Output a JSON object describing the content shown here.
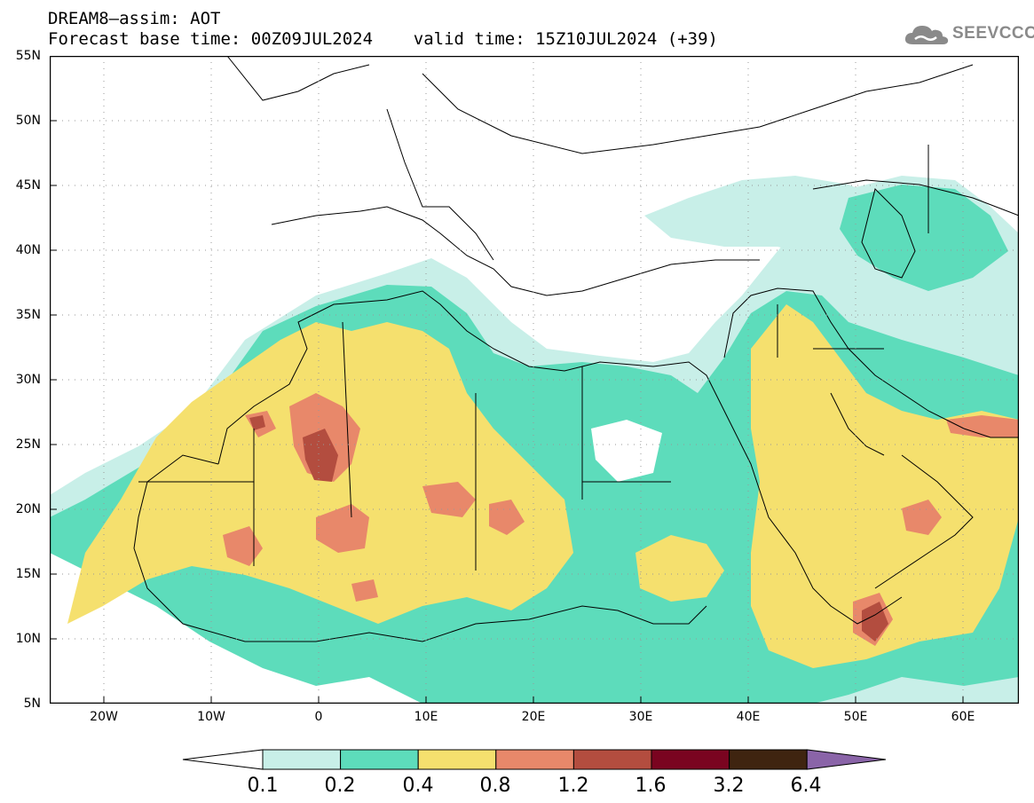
{
  "header": {
    "title_line1": "DREAM8–assim: AOT",
    "title_line2": "Forecast base time: 00Z09JUL2024    valid time: 15Z10JUL2024 (+39)"
  },
  "logo": {
    "text": "SEEVCCC",
    "icon": "cloud-icon"
  },
  "map": {
    "lat_labels": [
      "55N",
      "50N",
      "45N",
      "40N",
      "35N",
      "30N",
      "25N",
      "20N",
      "15N",
      "10N",
      "5N"
    ],
    "lon_labels": [
      "20W",
      "10W",
      "0",
      "10E",
      "20E",
      "30E",
      "40E",
      "50E",
      "60E"
    ]
  },
  "legend": {
    "labels": [
      "0.1",
      "0.2",
      "0.4",
      "0.8",
      "1.2",
      "1.6",
      "3.2",
      "6.4"
    ],
    "colors": [
      "#ffffff",
      "#c8efe8",
      "#5ddcbb",
      "#f5e06e",
      "#e8886a",
      "#b34d3f",
      "#7a0420",
      "#3f2410",
      "#8a64a8"
    ]
  }
}
